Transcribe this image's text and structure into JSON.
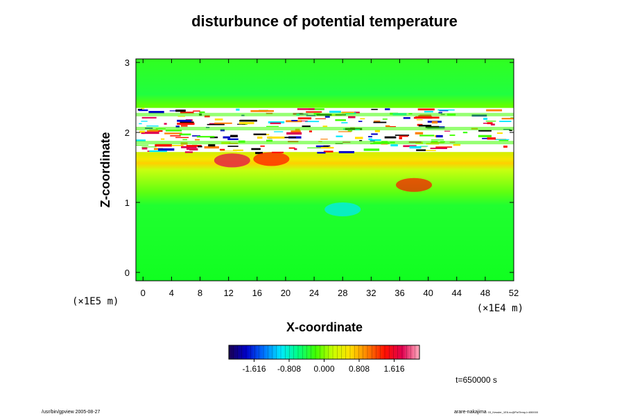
{
  "chart_data": {
    "type": "heatmap",
    "title": "disturbunce of potential temperature",
    "xlabel": "X-coordinate",
    "ylabel": "Z-coordinate",
    "x_ticks": [
      "0",
      "4",
      "8",
      "12",
      "16",
      "20",
      "24",
      "28",
      "32",
      "36",
      "40",
      "44",
      "48",
      "52"
    ],
    "x_tick_values": [
      0,
      4,
      8,
      12,
      16,
      20,
      24,
      28,
      32,
      36,
      40,
      44,
      48,
      52
    ],
    "y_ticks": [
      "0",
      "1",
      "2",
      "3"
    ],
    "y_tick_values": [
      0,
      1,
      2,
      3
    ],
    "xlim": [
      -1,
      52
    ],
    "ylim": [
      -0.12,
      3.05
    ],
    "x_unit": "(×1E4 m)",
    "y_unit": "(×1E5 m)",
    "colorbar": {
      "min": -2.2,
      "max": 2.2,
      "ticks": [
        "-1.616",
        "-0.808",
        "0.000",
        "0.808",
        "1.616"
      ],
      "tick_values": [
        -1.616,
        -0.808,
        0.0,
        0.808,
        1.616
      ],
      "colors": [
        "#1a0050",
        "#0000c8",
        "#0070ff",
        "#00e8ff",
        "#00ff80",
        "#40ff00",
        "#c8ff00",
        "#ffe000",
        "#ff8000",
        "#ff1000",
        "#e00050",
        "#ffb0c0"
      ]
    },
    "bands": [
      {
        "z": [
          -0.12,
          1.0
        ],
        "value": 0.0
      },
      {
        "z": [
          1.0,
          1.6
        ],
        "value": 0.18
      },
      {
        "z": [
          1.6,
          1.72
        ],
        "value": 0.55
      },
      {
        "z": [
          1.72,
          2.35
        ],
        "value": "saturated",
        "note": "white + multicolor disturbance layer"
      },
      {
        "z": [
          2.35,
          3.05
        ],
        "value": 0.0
      }
    ],
    "features": [
      {
        "x": 12.5,
        "z": 1.6,
        "value": 1.5
      },
      {
        "x": 18,
        "z": 1.62,
        "value": 1.4
      },
      {
        "x": 28,
        "z": 0.9,
        "value": -0.9
      },
      {
        "x": 38,
        "z": 1.25,
        "value": 1.2
      }
    ],
    "time_label": "t=650000 s"
  },
  "footer": {
    "left": "/usr/bin/gpview 2005-08-27",
    "right_main": "arare-nakajima",
    "right_small": "03_Kessler_1E6.nc@PotTemp,t=650000"
  }
}
